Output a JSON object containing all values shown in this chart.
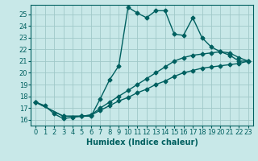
{
  "title": "",
  "xlabel": "Humidex (Indice chaleur)",
  "bg_color": "#c8e8e8",
  "line_color": "#006060",
  "grid_color": "#a0c8c8",
  "xlim": [
    -0.5,
    23.5
  ],
  "ylim": [
    15.5,
    25.8
  ],
  "yticks": [
    16,
    17,
    18,
    19,
    20,
    21,
    22,
    23,
    24,
    25
  ],
  "xticks": [
    0,
    1,
    2,
    3,
    4,
    5,
    6,
    7,
    8,
    9,
    10,
    11,
    12,
    13,
    14,
    15,
    16,
    17,
    18,
    19,
    20,
    21,
    22,
    23
  ],
  "line1_x": [
    0,
    1,
    2,
    3,
    4,
    5,
    6,
    7,
    8,
    9,
    10,
    11,
    12,
    13,
    14,
    15,
    16,
    17,
    18,
    19,
    20,
    21,
    22,
    23
  ],
  "line1_y": [
    17.5,
    17.2,
    16.5,
    16.1,
    16.2,
    16.3,
    16.3,
    17.8,
    19.4,
    20.6,
    25.6,
    25.1,
    24.7,
    25.3,
    25.3,
    23.3,
    23.2,
    24.7,
    23.0,
    22.2,
    21.8,
    21.5,
    21.0,
    21.0
  ],
  "line2_x": [
    0,
    3,
    5,
    6,
    7,
    8,
    9,
    10,
    11,
    12,
    13,
    14,
    15,
    16,
    17,
    18,
    19,
    20,
    21,
    22,
    23
  ],
  "line2_y": [
    17.5,
    16.3,
    16.3,
    16.4,
    17.0,
    17.5,
    18.0,
    18.5,
    19.0,
    19.5,
    20.0,
    20.5,
    21.0,
    21.3,
    21.5,
    21.6,
    21.7,
    21.8,
    21.7,
    21.3,
    21.0
  ],
  "line3_x": [
    0,
    3,
    5,
    6,
    7,
    8,
    9,
    10,
    11,
    12,
    13,
    14,
    15,
    16,
    17,
    18,
    19,
    20,
    21,
    22,
    23
  ],
  "line3_y": [
    17.5,
    16.3,
    16.3,
    16.4,
    16.8,
    17.2,
    17.6,
    17.9,
    18.3,
    18.6,
    19.0,
    19.3,
    19.7,
    20.0,
    20.2,
    20.4,
    20.5,
    20.6,
    20.7,
    20.8,
    21.0
  ],
  "marker": "D",
  "marker_size": 2.5,
  "line_width": 1.0,
  "label_fontsize": 7,
  "tick_fontsize": 6
}
